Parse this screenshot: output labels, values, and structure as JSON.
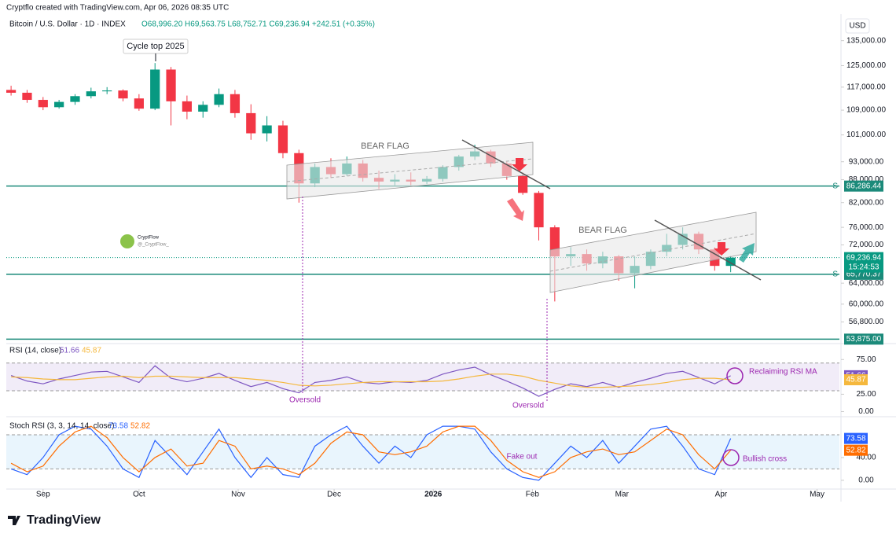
{
  "header": {
    "credit": "Cryptflo created with TradingView.com, Apr 06, 2026 08:35 UTC",
    "logo": "TradingView",
    "watermark": "CryptFlow",
    "watermark_handle": "@_CryptFlow_"
  },
  "chart_data": [
    {
      "type": "candlestick",
      "title": "Bitcoin / U.S. Dollar · 1D · INDEX",
      "ohlc_label": "O68,996.20  H69,563.75  L68,752.71  C69,236.94  +242.51 (+0.35%)",
      "currency": "USD",
      "x": [
        -10,
        -5,
        0,
        5,
        10,
        15,
        20,
        25,
        30,
        35,
        40,
        45,
        50,
        55,
        60,
        65,
        70,
        75,
        80,
        85,
        90,
        95,
        100,
        105,
        110,
        115,
        120,
        125,
        130,
        135,
        140,
        145,
        150,
        155,
        160,
        165,
        170,
        175,
        180,
        185,
        190,
        195,
        200,
        205,
        210,
        215
      ],
      "open": [
        116000,
        115000,
        112500,
        110000,
        111800,
        113800,
        115500,
        115800,
        113000,
        109500,
        123500,
        112000,
        108500,
        110800,
        114500,
        108000,
        101500,
        104000,
        95500,
        87000,
        91500,
        89500,
        92500,
        88500,
        87500,
        88000,
        87500,
        88200,
        91500,
        94500,
        96000,
        92500,
        89000,
        84500,
        76000,
        69500,
        70000,
        68000,
        69500,
        66000,
        67500,
        70500,
        72000,
        74500,
        71000,
        67500
      ],
      "high": [
        117500,
        116000,
        113500,
        112500,
        114500,
        116800,
        117000,
        116200,
        114500,
        126000,
        124500,
        114000,
        112000,
        116500,
        116000,
        111000,
        107000,
        105500,
        96500,
        92500,
        94000,
        94500,
        93500,
        90500,
        89500,
        90000,
        89000,
        92000,
        95000,
        98000,
        96500,
        93000,
        90000,
        85000,
        76500,
        71500,
        71000,
        70500,
        69800,
        69500,
        71000,
        74500,
        76000,
        75000,
        71500,
        69600
      ],
      "low": [
        114000,
        111500,
        109000,
        109500,
        110800,
        113000,
        114500,
        112000,
        108800,
        109000,
        104000,
        106000,
        106500,
        110000,
        106500,
        99500,
        99000,
        94000,
        82000,
        86000,
        88500,
        89000,
        87500,
        85500,
        86500,
        86500,
        86800,
        87500,
        90500,
        93500,
        91500,
        88000,
        84000,
        73000,
        60500,
        67500,
        66500,
        67000,
        64500,
        63000,
        66800,
        69500,
        71000,
        70000,
        66500,
        66200
      ],
      "close": [
        115000,
        112500,
        110000,
        111800,
        113800,
        115500,
        115800,
        113000,
        109500,
        123500,
        112000,
        108500,
        110800,
        114500,
        108000,
        101500,
        104000,
        95500,
        87000,
        91500,
        89500,
        92500,
        88500,
        87500,
        88000,
        87500,
        88200,
        91500,
        94500,
        96000,
        92500,
        89000,
        84500,
        76000,
        69500,
        70000,
        68000,
        69500,
        66000,
        67500,
        70500,
        72000,
        74500,
        71000,
        67500,
        69236.94
      ],
      "up_color": "#089981",
      "down_color": "#f23645",
      "xlim": [
        -11.5,
        249
      ],
      "ylim": [
        53400,
        144000
      ],
      "log_scale": true,
      "xticks": [
        {
          "value": 0,
          "label": "Sep"
        },
        {
          "value": 30,
          "label": "Oct"
        },
        {
          "value": 61,
          "label": "Nov"
        },
        {
          "value": 91,
          "label": "Dec"
        },
        {
          "value": 122,
          "label": "2026"
        },
        {
          "value": 153,
          "label": "Feb"
        },
        {
          "value": 181,
          "label": "Mar"
        },
        {
          "value": 212,
          "label": "Apr"
        },
        {
          "value": 242,
          "label": "May"
        }
      ],
      "yticks": [
        {
          "value": 135000,
          "label": "135,000.00"
        },
        {
          "value": 125000,
          "label": "125,000.00"
        },
        {
          "value": 117000,
          "label": "117,000.00"
        },
        {
          "value": 109000,
          "label": "109,000.00"
        },
        {
          "value": 101000,
          "label": "101,000.00"
        },
        {
          "value": 93000,
          "label": "93,000.00"
        },
        {
          "value": 88000,
          "label": "88,000.00"
        },
        {
          "value": 82000,
          "label": "82,000.00"
        },
        {
          "value": 76000,
          "label": "76,000.00"
        },
        {
          "value": 72000,
          "label": "72,000.00"
        },
        {
          "value": 64000,
          "label": "64,000.00"
        },
        {
          "value": 60000,
          "label": "60,000.00"
        },
        {
          "value": 56800,
          "label": "56,800.00"
        }
      ],
      "levels": [
        {
          "value": 86286.44,
          "label": "86,286.44",
          "tag": "S"
        },
        {
          "value": 65770.37,
          "label": "65,770.37",
          "tag": "S"
        },
        {
          "value": 53875,
          "label": "53,875.00"
        }
      ],
      "level_color": "#1b8a7a",
      "last_price": {
        "value": 69236.94,
        "label": "69,236.94",
        "countdown": "15:24:53"
      },
      "annotations": [
        "Cycle top 2025",
        "BEAR FLAG",
        "BEAR FLAG"
      ]
    },
    {
      "type": "line",
      "title": "RSI (14, close)",
      "series": [
        {
          "name": "RSI",
          "color": "#7e57c2",
          "values": [
            52,
            44,
            40,
            47,
            52,
            57,
            58,
            50,
            42,
            66,
            48,
            43,
            48,
            55,
            45,
            36,
            42,
            33,
            27,
            42,
            45,
            50,
            42,
            40,
            43,
            42,
            45,
            54,
            60,
            64,
            53,
            44,
            34,
            22,
            32,
            40,
            36,
            42,
            35,
            42,
            48,
            55,
            58,
            49,
            40,
            51.66
          ]
        },
        {
          "name": "RSI MA",
          "color": "#f5b83d",
          "values": [
            50,
            49,
            47,
            46,
            46,
            48,
            50,
            51,
            49,
            51,
            51,
            50,
            49,
            49,
            49,
            47,
            45,
            42,
            38,
            37,
            38,
            40,
            42,
            43,
            43,
            43,
            43,
            44,
            47,
            51,
            54,
            54,
            51,
            45,
            41,
            37,
            35,
            35,
            36,
            37,
            39,
            42,
            46,
            48,
            48,
            45.87
          ]
        }
      ],
      "ylim": [
        -4,
        98
      ],
      "bands": [
        30,
        70
      ],
      "yticks": [
        {
          "value": 75,
          "label": "75.00"
        },
        {
          "value": 25,
          "label": "25.00"
        },
        {
          "value": 0,
          "label": "0.00"
        }
      ],
      "annotations": [
        "Oversold",
        "Oversold",
        "Reclaiming RSI MA"
      ]
    },
    {
      "type": "line",
      "title": "Stoch RSI (3, 3, 14, 14, close)",
      "series": [
        {
          "name": "K",
          "color": "#2962ff",
          "values": [
            20,
            10,
            40,
            80,
            95,
            90,
            60,
            20,
            5,
            70,
            40,
            10,
            50,
            90,
            40,
            5,
            40,
            10,
            5,
            60,
            80,
            95,
            60,
            30,
            60,
            40,
            80,
            95,
            95,
            90,
            50,
            20,
            5,
            0,
            30,
            60,
            40,
            70,
            30,
            60,
            90,
            95,
            60,
            20,
            10,
            73.58
          ]
        },
        {
          "name": "D",
          "color": "#ff6d00",
          "values": [
            30,
            15,
            25,
            60,
            85,
            95,
            75,
            40,
            15,
            40,
            55,
            25,
            30,
            70,
            60,
            20,
            25,
            20,
            10,
            30,
            65,
            85,
            80,
            50,
            45,
            50,
            60,
            85,
            95,
            95,
            70,
            35,
            15,
            5,
            15,
            40,
            50,
            55,
            45,
            50,
            70,
            90,
            80,
            45,
            20,
            52.82
          ]
        }
      ],
      "ylim": [
        -14,
        109
      ],
      "bands": [
        20,
        80
      ],
      "yticks": [
        {
          "value": 40,
          "label": "40.00"
        },
        {
          "value": 0,
          "label": "0.00"
        }
      ],
      "annotations": [
        "Fake out",
        "Bullish cross"
      ]
    }
  ]
}
